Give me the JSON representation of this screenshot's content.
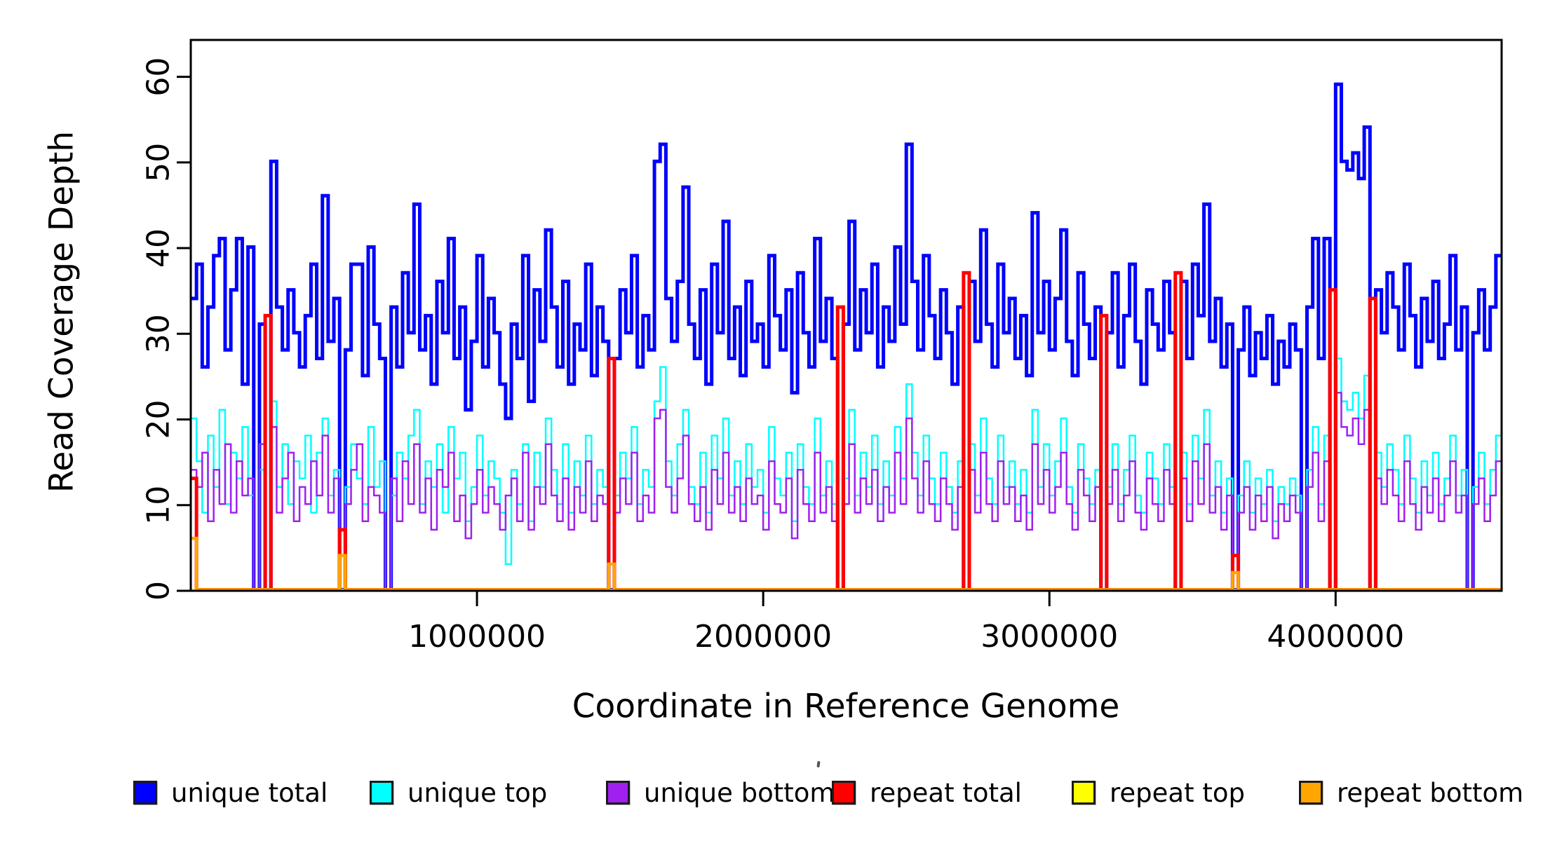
{
  "figure": {
    "background": "#ffffff"
  },
  "axes": {
    "y_label": "Read Coverage Depth",
    "x_label": "Coordinate in Reference Genome",
    "y_ticks": [
      0,
      10,
      20,
      30,
      40,
      50,
      60
    ],
    "x_ticks": [
      {
        "value": 1000000,
        "label": "1000000"
      },
      {
        "value": 2000000,
        "label": "2000000"
      },
      {
        "value": 3000000,
        "label": "3000000"
      },
      {
        "value": 4000000,
        "label": "4000000"
      }
    ]
  },
  "chart_data": {
    "type": "line",
    "subtype": "step-coverage",
    "title": "",
    "xlabel": "Coordinate in Reference Genome",
    "ylabel": "Read Coverage Depth",
    "xlim": [
      0,
      4580000
    ],
    "ylim": [
      0,
      64.3
    ],
    "bin_size": 20000,
    "n_bins": 229,
    "grid": false,
    "legend_position": "bottom",
    "legend": [
      {
        "label": "unique total",
        "color": "#0000ff"
      },
      {
        "label": "unique top",
        "color": "#00ffff"
      },
      {
        "label": "unique bottom",
        "color": "#a020f0"
      },
      {
        "label": "repeat total",
        "color": "#ff0000"
      },
      {
        "label": "repeat top",
        "color": "#ffff00"
      },
      {
        "label": "repeat bottom",
        "color": "#ffa500"
      }
    ],
    "series": [
      {
        "name": "unique total",
        "color": "#0000ff",
        "line_width": 5,
        "values": [
          34,
          38,
          26,
          33,
          39,
          41,
          28,
          35,
          41,
          24,
          40,
          0,
          31,
          0,
          50,
          33,
          28,
          35,
          30,
          26,
          32,
          38,
          27,
          46,
          29,
          34,
          0,
          28,
          38,
          38,
          25,
          40,
          31,
          27,
          0,
          33,
          26,
          37,
          30,
          45,
          28,
          32,
          24,
          36,
          30,
          41,
          27,
          33,
          21,
          29,
          39,
          26,
          34,
          30,
          24,
          20,
          31,
          27,
          39,
          22,
          35,
          29,
          42,
          33,
          26,
          36,
          24,
          31,
          28,
          38,
          25,
          33,
          29,
          0,
          27,
          35,
          30,
          39,
          26,
          32,
          28,
          50,
          52,
          34,
          29,
          36,
          47,
          31,
          27,
          35,
          24,
          38,
          30,
          43,
          27,
          33,
          25,
          36,
          29,
          31,
          26,
          39,
          32,
          28,
          35,
          23,
          37,
          30,
          26,
          41,
          29,
          34,
          27,
          0,
          31,
          43,
          28,
          35,
          30,
          38,
          26,
          33,
          29,
          40,
          31,
          52,
          36,
          28,
          39,
          32,
          27,
          35,
          30,
          24,
          33,
          0,
          36,
          29,
          42,
          31,
          26,
          38,
          30,
          34,
          27,
          32,
          25,
          44,
          30,
          36,
          28,
          34,
          42,
          29,
          25,
          37,
          31,
          27,
          33,
          0,
          30,
          37,
          26,
          32,
          38,
          29,
          24,
          35,
          31,
          28,
          36,
          30,
          0,
          36,
          27,
          38,
          32,
          45,
          29,
          34,
          26,
          31,
          0,
          28,
          33,
          25,
          30,
          27,
          32,
          24,
          29,
          26,
          31,
          28,
          0,
          33,
          41,
          27,
          41,
          0,
          59,
          50,
          49,
          51,
          48,
          54,
          0,
          35,
          30,
          37,
          33,
          28,
          38,
          32,
          26,
          34,
          29,
          36,
          27,
          31,
          39,
          28,
          33,
          0,
          30,
          35,
          28,
          33,
          39
        ]
      },
      {
        "name": "unique top",
        "color": "#00ffff",
        "line_width": 2.5,
        "values": [
          20,
          15,
          9,
          18,
          12,
          21,
          10,
          16,
          13,
          19,
          11,
          0,
          14,
          0,
          22,
          12,
          17,
          10,
          15,
          13,
          18,
          9,
          16,
          20,
          11,
          14,
          0,
          12,
          17,
          13,
          10,
          19,
          12,
          15,
          0,
          11,
          16,
          13,
          18,
          21,
          10,
          15,
          12,
          17,
          9,
          19,
          13,
          16,
          8,
          12,
          18,
          11,
          15,
          13,
          9,
          3,
          14,
          10,
          17,
          8,
          16,
          12,
          20,
          14,
          10,
          17,
          9,
          15,
          11,
          18,
          10,
          14,
          12,
          0,
          11,
          16,
          13,
          19,
          10,
          14,
          12,
          22,
          26,
          15,
          11,
          17,
          21,
          12,
          10,
          16,
          9,
          18,
          13,
          20,
          11,
          15,
          10,
          17,
          12,
          14,
          9,
          19,
          13,
          11,
          16,
          8,
          17,
          12,
          10,
          20,
          11,
          15,
          10,
          0,
          13,
          21,
          11,
          16,
          12,
          18,
          10,
          15,
          11,
          19,
          13,
          24,
          16,
          11,
          18,
          13,
          10,
          16,
          12,
          9,
          15,
          0,
          17,
          11,
          20,
          13,
          10,
          18,
          12,
          15,
          10,
          14,
          9,
          21,
          12,
          17,
          11,
          15,
          20,
          12,
          9,
          17,
          13,
          10,
          14,
          0,
          12,
          17,
          10,
          14,
          18,
          11,
          9,
          16,
          13,
          10,
          17,
          12,
          0,
          16,
          10,
          18,
          13,
          21,
          11,
          15,
          9,
          13,
          0,
          11,
          15,
          9,
          13,
          10,
          14,
          8,
          12,
          10,
          13,
          11,
          0,
          14,
          19,
          10,
          18,
          0,
          27,
          22,
          21,
          23,
          20,
          25,
          0,
          16,
          12,
          17,
          14,
          10,
          18,
          13,
          9,
          15,
          11,
          16,
          10,
          13,
          18,
          11,
          14,
          0,
          12,
          16,
          10,
          14,
          18
        ]
      },
      {
        "name": "unique bottom",
        "color": "#a020f0",
        "line_width": 2.5,
        "values": [
          14,
          12,
          16,
          8,
          14,
          10,
          17,
          9,
          15,
          11,
          13,
          0,
          17,
          0,
          19,
          9,
          13,
          16,
          8,
          12,
          10,
          15,
          11,
          18,
          9,
          13,
          0,
          10,
          14,
          17,
          8,
          12,
          11,
          9,
          0,
          13,
          8,
          15,
          10,
          17,
          9,
          13,
          7,
          14,
          12,
          16,
          8,
          11,
          6,
          10,
          14,
          9,
          12,
          10,
          7,
          11,
          13,
          8,
          16,
          7,
          12,
          10,
          17,
          11,
          8,
          13,
          7,
          12,
          9,
          15,
          8,
          11,
          10,
          0,
          9,
          13,
          10,
          16,
          8,
          11,
          9,
          20,
          21,
          12,
          9,
          13,
          18,
          10,
          8,
          12,
          7,
          14,
          10,
          16,
          9,
          12,
          8,
          13,
          10,
          11,
          7,
          15,
          10,
          9,
          13,
          6,
          14,
          10,
          8,
          16,
          9,
          12,
          8,
          0,
          10,
          17,
          9,
          13,
          10,
          14,
          8,
          12,
          9,
          16,
          10,
          20,
          13,
          9,
          15,
          10,
          8,
          13,
          10,
          7,
          12,
          0,
          14,
          9,
          16,
          10,
          8,
          15,
          10,
          12,
          8,
          11,
          7,
          17,
          10,
          14,
          9,
          12,
          16,
          10,
          7,
          14,
          11,
          8,
          12,
          0,
          10,
          14,
          8,
          11,
          15,
          9,
          7,
          13,
          10,
          8,
          14,
          10,
          0,
          13,
          8,
          15,
          10,
          17,
          9,
          12,
          7,
          11,
          0,
          9,
          12,
          7,
          11,
          8,
          12,
          6,
          10,
          8,
          11,
          9,
          0,
          12,
          16,
          8,
          15,
          0,
          23,
          19,
          18,
          20,
          17,
          21,
          0,
          13,
          10,
          14,
          11,
          8,
          15,
          10,
          7,
          12,
          9,
          13,
          8,
          11,
          15,
          9,
          11,
          0,
          10,
          13,
          8,
          11,
          15
        ]
      },
      {
        "name": "repeat total",
        "color": "#ff0000",
        "line_width": 5,
        "sparse": {
          "0": 13,
          "13": 32,
          "26": 7,
          "73": 27,
          "113": 33,
          "135": 37,
          "159": 32,
          "172": 37,
          "182": 4,
          "199": 35,
          "206": 34
        }
      },
      {
        "name": "repeat top",
        "color": "#ffff00",
        "line_width": 2.5,
        "sparse": {}
      },
      {
        "name": "repeat bottom",
        "color": "#ffa500",
        "line_width": 4.5,
        "sparse": {
          "0": 6,
          "26": 4,
          "73": 3,
          "182": 2
        }
      }
    ]
  }
}
